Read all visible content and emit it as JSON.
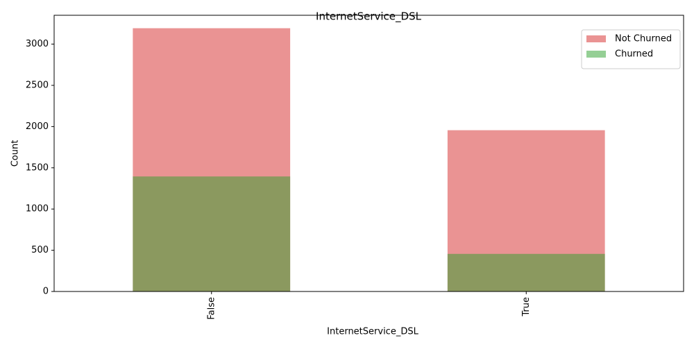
{
  "chart_data": {
    "type": "bar",
    "barmode": "overlay",
    "title": "InternetService_DSL",
    "x_label": "InternetService_DSL",
    "y_label": "Count",
    "categories": [
      "False",
      "True"
    ],
    "series": [
      {
        "name": "Not Churned",
        "color": "#d62728",
        "values": [
          3193,
          1956
        ]
      },
      {
        "name": "Churned",
        "color": "#2ca02c",
        "values": [
          1395,
          456
        ]
      }
    ],
    "ylim": [
      0,
      3350
    ],
    "yticks": [
      0,
      500,
      1000,
      1500,
      2000,
      2500,
      3000
    ],
    "legend": "upper right"
  }
}
